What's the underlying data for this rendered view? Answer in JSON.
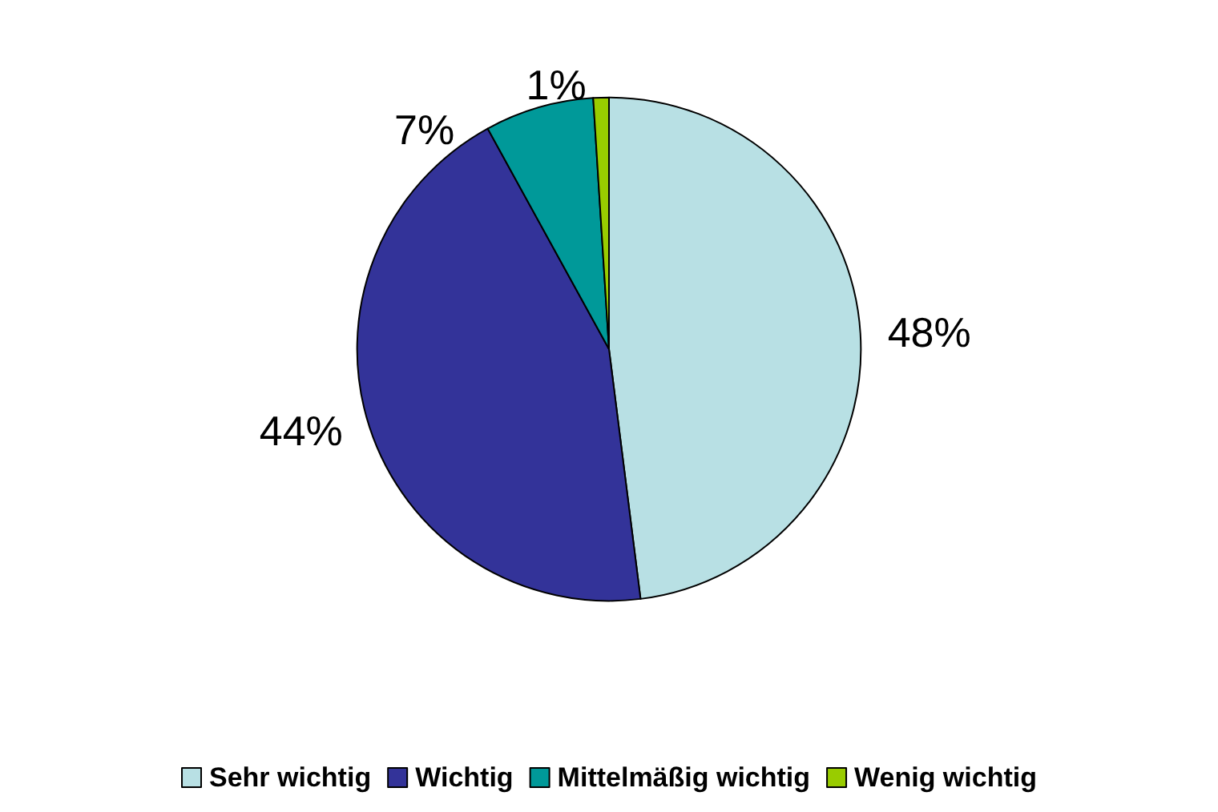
{
  "chart_data": {
    "type": "pie",
    "categories": [
      "Sehr wichtig",
      "Wichtig",
      "Mittelmäßig wichtig",
      "Wenig wichtig"
    ],
    "values": [
      48,
      44,
      7,
      1
    ],
    "value_labels": [
      "48%",
      "44%",
      "7%",
      "1%"
    ],
    "colors": [
      "#b8e0e4",
      "#333399",
      "#009999",
      "#99cc00"
    ],
    "legend": "bottom"
  }
}
